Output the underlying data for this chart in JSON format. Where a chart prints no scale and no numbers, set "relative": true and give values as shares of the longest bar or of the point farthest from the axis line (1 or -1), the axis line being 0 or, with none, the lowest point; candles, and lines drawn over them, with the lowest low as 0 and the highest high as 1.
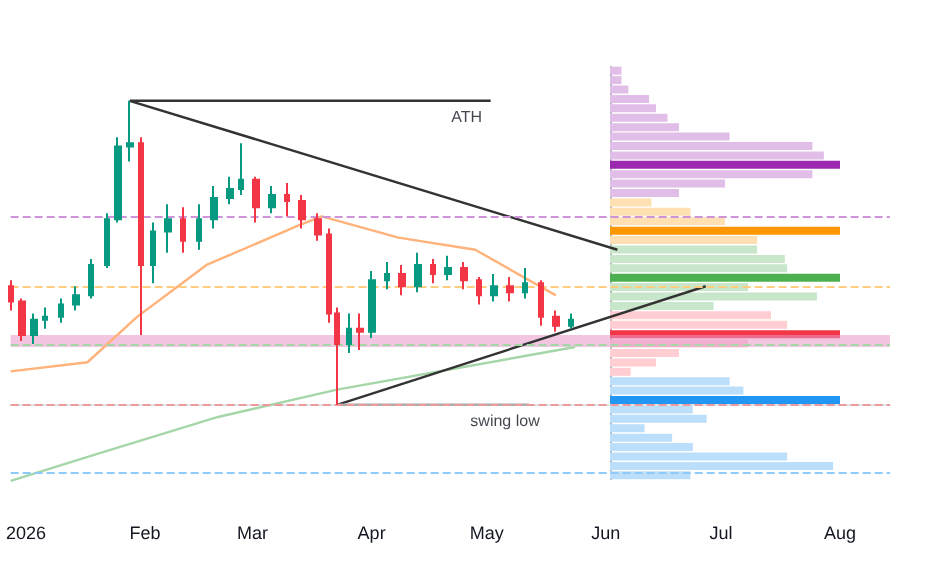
{
  "chart_data": [
    {
      "type": "candlestick",
      "relative": true,
      "marker": "none",
      "x": [
        "2025-12-28",
        "2025-12-31",
        "2026-01-03",
        "2026-01-06",
        "2026-01-10",
        "2026-01-14",
        "2026-01-18",
        "2026-01-22",
        "2026-01-25",
        "2026-01-28",
        "2026-01-31",
        "2026-02-03",
        "2026-02-07",
        "2026-02-11",
        "2026-02-15",
        "2026-02-19",
        "2026-02-23",
        "2026-02-26",
        "2026-03-02",
        "2026-03-06",
        "2026-03-10",
        "2026-03-14",
        "2026-03-18",
        "2026-03-21",
        "2026-03-23",
        "2026-03-26",
        "2026-03-29",
        "2026-04-01",
        "2026-04-05",
        "2026-04-09",
        "2026-04-13",
        "2026-04-17",
        "2026-04-21",
        "2026-04-25",
        "2026-04-29",
        "2026-05-03",
        "2026-05-07",
        "2026-05-11",
        "2026-05-15",
        "2026-05-19",
        "2026-05-23"
      ],
      "ohlc": [
        [
          0.39,
          0.41,
          0.31,
          0.34
        ],
        [
          0.34,
          0.35,
          0.21,
          0.23
        ],
        [
          0.23,
          0.3,
          0.2,
          0.28
        ],
        [
          0.28,
          0.32,
          0.25,
          0.29
        ],
        [
          0.29,
          0.35,
          0.27,
          0.33
        ],
        [
          0.33,
          0.39,
          0.31,
          0.36
        ],
        [
          0.36,
          0.48,
          0.35,
          0.46
        ],
        [
          0.46,
          0.63,
          0.45,
          0.61
        ],
        [
          0.61,
          0.88,
          0.6,
          0.85
        ],
        [
          0.85,
          1,
          0.8,
          0.86
        ],
        [
          0.86,
          0.88,
          0.23,
          0.46
        ],
        [
          0.46,
          0.6,
          0.4,
          0.57
        ],
        [
          0.57,
          0.66,
          0.5,
          0.61
        ],
        [
          0.61,
          0.65,
          0.5,
          0.54
        ],
        [
          0.54,
          0.66,
          0.51,
          0.61
        ],
        [
          0.61,
          0.72,
          0.58,
          0.68
        ],
        [
          0.68,
          0.75,
          0.66,
          0.71
        ],
        [
          0.71,
          0.86,
          0.69,
          0.74
        ],
        [
          0.74,
          0.75,
          0.6,
          0.65
        ],
        [
          0.65,
          0.72,
          0.63,
          0.69
        ],
        [
          0.69,
          0.73,
          0.62,
          0.67
        ],
        [
          0.67,
          0.69,
          0.58,
          0.61
        ],
        [
          0.61,
          0.63,
          0.54,
          0.56
        ],
        [
          0.56,
          0.58,
          0.27,
          0.3
        ],
        [
          0.3,
          0.32,
          0,
          0.2
        ],
        [
          0.2,
          0.3,
          0.17,
          0.25
        ],
        [
          0.25,
          0.3,
          0.18,
          0.24
        ],
        [
          0.24,
          0.44,
          0.22,
          0.41
        ],
        [
          0.41,
          0.47,
          0.38,
          0.43
        ],
        [
          0.43,
          0.46,
          0.36,
          0.39
        ],
        [
          0.39,
          0.5,
          0.37,
          0.46
        ],
        [
          0.46,
          0.48,
          0.4,
          0.43
        ],
        [
          0.43,
          0.49,
          0.41,
          0.45
        ],
        [
          0.45,
          0.47,
          0.38,
          0.41
        ],
        [
          0.41,
          0.42,
          0.33,
          0.36
        ],
        [
          0.36,
          0.43,
          0.34,
          0.39
        ],
        [
          0.39,
          0.42,
          0.34,
          0.37
        ],
        [
          0.37,
          0.45,
          0.35,
          0.4
        ],
        [
          0.4,
          0.41,
          0.26,
          0.29
        ],
        [
          0.29,
          0.31,
          0.24,
          0.26
        ],
        [
          0.26,
          0.3,
          0.25,
          0.28
        ]
      ],
      "xlim": [
        "2025-12-28",
        "2026-08-14"
      ],
      "xticks": [
        {
          "value": "2026-01-01",
          "label": "2026"
        },
        {
          "value": "2026-02-01",
          "label": "Feb"
        },
        {
          "value": "2026-03-01",
          "label": "Mar"
        },
        {
          "value": "2026-04-01",
          "label": "Apr"
        },
        {
          "value": "2026-05-01",
          "label": "May"
        },
        {
          "value": "2026-06-01",
          "label": "Jun"
        },
        {
          "value": "2026-07-01",
          "label": "Jul"
        },
        {
          "value": "2026-08-01",
          "label": "Aug"
        }
      ],
      "series": [
        {
          "type": "line",
          "color": "#ffb27a",
          "x": [
            "2025-12-28",
            "2026-01-17",
            "2026-01-30",
            "2026-02-17",
            "2026-03-13",
            "2026-03-19",
            "2026-04-08",
            "2026-04-28",
            "2026-05-19"
          ],
          "values": [
            0.11,
            0.14,
            0.29,
            0.46,
            0.59,
            0.62,
            0.55,
            0.51,
            0.36
          ]
        },
        {
          "type": "line",
          "color": "#a5d6a7",
          "x": [
            "2025-12-28",
            "2026-01-20",
            "2026-02-20",
            "2026-03-23",
            "2026-05-24"
          ],
          "values": [
            -0.25,
            -0.16,
            -0.04,
            0.05,
            0.19
          ]
        },
        {
          "type": "line",
          "color": "#333333",
          "x": [
            "2026-01-28",
            "2026-06-04"
          ],
          "values": [
            1,
            0.51
          ]
        },
        {
          "type": "line",
          "color": "#333333",
          "x": [
            "2026-03-23",
            "2026-06-27"
          ],
          "values": [
            0,
            0.39
          ]
        },
        {
          "type": "line",
          "color": "#333333",
          "x": [
            "2026-01-28",
            "2026-05-02"
          ],
          "values": [
            1,
            1
          ]
        },
        {
          "type": "line",
          "color": "#aaaaaa",
          "x": [
            "2026-03-23",
            "2026-05-12"
          ],
          "values": [
            0,
            0
          ]
        }
      ],
      "ref_lines": [
        {
          "axis": "y",
          "value": 0.62,
          "color": "#ce93d8",
          "line_style": "dashed"
        },
        {
          "axis": "y",
          "value": 0.39,
          "color": "#ffcc80",
          "line_style": "dashed"
        },
        {
          "axis": "y",
          "value": 0.2,
          "color": "#a5d6a7",
          "line_style": "dashed"
        },
        {
          "axis": "y",
          "value": 0,
          "color": "#ef9a9a",
          "line_style": "dashed"
        },
        {
          "axis": "y",
          "value": -0.22,
          "color": "#90caf9",
          "line_style": "dashed"
        }
      ],
      "bands": [
        {
          "axis": "y",
          "from": 0.19,
          "to": 0.23,
          "color": "#e895c8"
        }
      ],
      "annotations": [
        {
          "text": "ATH",
          "x": "2026-05-02",
          "y": 1
        },
        {
          "text": "swing low",
          "x": "2026-05-12",
          "y": 0
        }
      ]
    },
    {
      "type": "bar",
      "orientation": "horizontal",
      "relative": true,
      "categories": [
        null,
        null,
        null,
        null,
        null,
        null,
        null,
        null,
        null,
        null,
        null,
        null,
        null,
        null,
        null,
        null,
        null,
        null,
        null,
        null,
        null,
        null,
        null,
        null,
        null,
        null,
        null,
        null,
        null,
        null,
        null,
        null,
        null,
        null,
        null,
        null,
        null,
        null,
        null,
        null,
        null,
        null,
        null,
        null
      ],
      "values": [
        0.05,
        0.05,
        0.08,
        0.17,
        0.2,
        0.25,
        0.3,
        0.52,
        0.88,
        0.93,
        1,
        0.88,
        0.5,
        0.3,
        0.18,
        0.35,
        0.5,
        1,
        0.64,
        0.64,
        0.76,
        0.77,
        1,
        0.6,
        0.9,
        0.45,
        0.7,
        0.77,
        1,
        0.6,
        0.3,
        0.2,
        0.09,
        0.52,
        0.58,
        1,
        0.36,
        0.42,
        0.15,
        0.27,
        0.36,
        0.77,
        0.97,
        0.35
      ],
      "colors": [
        "#e1bee7",
        "#e1bee7",
        "#e1bee7",
        "#e1bee7",
        "#e1bee7",
        "#e1bee7",
        "#e1bee7",
        "#e1bee7",
        "#e1bee7",
        "#e1bee7",
        "#9c27b0",
        "#e1bee7",
        "#e1bee7",
        "#e1bee7",
        "#ffe0b2",
        "#ffe0b2",
        "#ffe0b2",
        "#ff9800",
        "#ffe0b2",
        "#c8e6c9",
        "#c8e6c9",
        "#c8e6c9",
        "#4caf50",
        "#c8e6c9",
        "#c8e6c9",
        "#c8e6c9",
        "#ffcdd2",
        "#ffcdd2",
        "#f23645",
        "#ffcdd2",
        "#ffcdd2",
        "#ffcdd2",
        "#ffcdd2",
        "#bbdefb",
        "#bbdefb",
        "#2196f3",
        "#bbdefb",
        "#bbdefb",
        "#bbdefb",
        "#bbdefb",
        "#bbdefb",
        "#bbdefb",
        "#bbdefb",
        "#bbdefb"
      ]
    }
  ]
}
